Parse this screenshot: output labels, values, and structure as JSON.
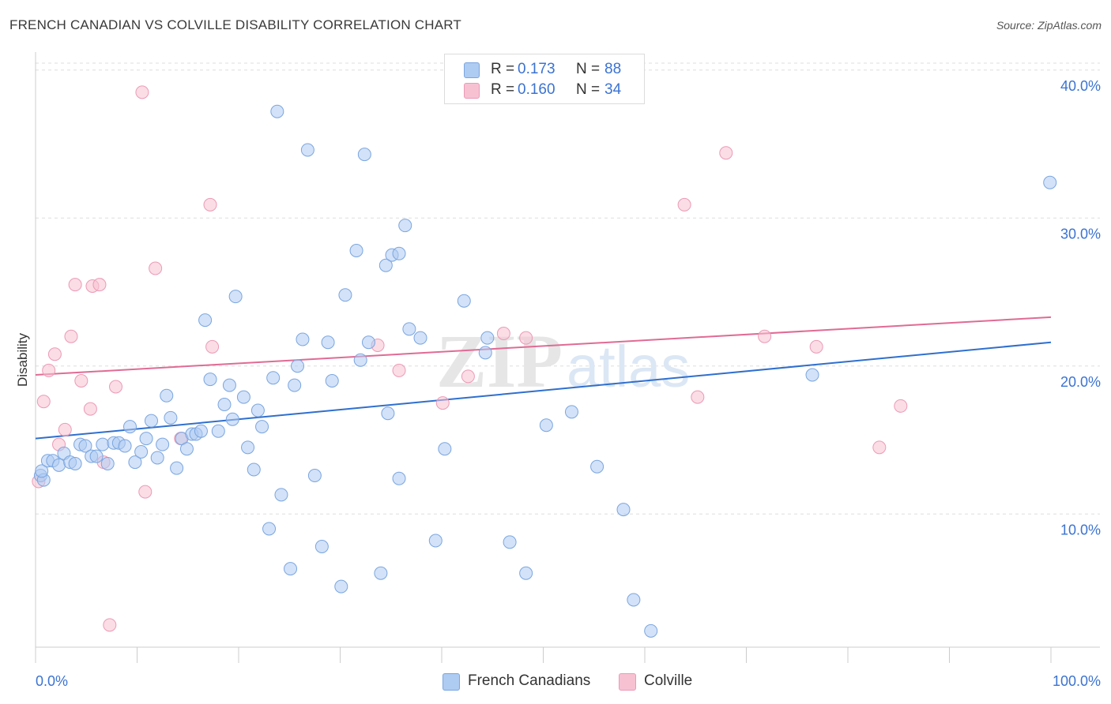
{
  "title": "FRENCH CANADIAN VS COLVILLE DISABILITY CORRELATION CHART",
  "source": "Source: ZipAtlas.com",
  "legend": {
    "rows": [
      {
        "r_label": "R =",
        "r_value": "0.173",
        "n_label": "N =",
        "n_value": "88"
      },
      {
        "r_label": "R =",
        "r_value": "0.160",
        "n_label": "N =",
        "n_value": "34"
      }
    ]
  },
  "bottom_legend": [
    "French Canadians",
    "Colville"
  ],
  "colors": {
    "blue_fill": "#aecbf2",
    "blue_stroke": "#7aa6e0",
    "blue_line": "#2f6fce",
    "pink_fill": "#f7c1d2",
    "pink_stroke": "#ec9ab5",
    "pink_line": "#e06b94",
    "axis_text": "#3b73d1",
    "grid": "#dddddd"
  },
  "chart_data": {
    "type": "scatter",
    "title": "FRENCH CANADIAN VS COLVILLE DISABILITY CORRELATION CHART",
    "xlabel": "",
    "ylabel": "Disability",
    "xlim": [
      0,
      100
    ],
    "ylim": [
      1,
      41
    ],
    "x_tick_labels": [
      "0.0%",
      "100.0%"
    ],
    "y_ticks": [
      10,
      20,
      30,
      40
    ],
    "y_tick_labels": [
      "10.0%",
      "20.0%",
      "30.0%",
      "40.0%"
    ],
    "grid": true,
    "legend_position": "top-center",
    "watermark": "ZIPatlas",
    "series": [
      {
        "name": "French Canadians",
        "r": 0.173,
        "n": 88,
        "trend": {
          "x": [
            0,
            100
          ],
          "y": [
            15.1,
            21.6
          ]
        },
        "points": [
          [
            0.5,
            12.6
          ],
          [
            0.8,
            12.3
          ],
          [
            0.6,
            12.9
          ],
          [
            1.2,
            13.6
          ],
          [
            1.7,
            13.6
          ],
          [
            2.3,
            13.3
          ],
          [
            2.8,
            14.1
          ],
          [
            3.4,
            13.5
          ],
          [
            3.9,
            13.4
          ],
          [
            4.4,
            14.7
          ],
          [
            4.9,
            14.6
          ],
          [
            5.5,
            13.9
          ],
          [
            6.0,
            13.9
          ],
          [
            6.6,
            14.7
          ],
          [
            7.1,
            13.4
          ],
          [
            7.7,
            14.8
          ],
          [
            8.2,
            14.8
          ],
          [
            8.8,
            14.6
          ],
          [
            9.3,
            15.9
          ],
          [
            9.8,
            13.5
          ],
          [
            10.4,
            14.2
          ],
          [
            10.9,
            15.1
          ],
          [
            11.4,
            16.3
          ],
          [
            12.0,
            13.8
          ],
          [
            12.5,
            14.7
          ],
          [
            12.9,
            18.0
          ],
          [
            13.3,
            16.5
          ],
          [
            13.9,
            13.1
          ],
          [
            14.4,
            15.1
          ],
          [
            14.9,
            14.4
          ],
          [
            15.4,
            15.4
          ],
          [
            15.8,
            15.4
          ],
          [
            16.3,
            15.6
          ],
          [
            16.7,
            23.1
          ],
          [
            17.2,
            19.1
          ],
          [
            18.0,
            15.6
          ],
          [
            18.6,
            17.4
          ],
          [
            19.1,
            18.7
          ],
          [
            19.4,
            16.4
          ],
          [
            19.7,
            24.7
          ],
          [
            20.5,
            17.9
          ],
          [
            20.9,
            14.5
          ],
          [
            21.5,
            13.0
          ],
          [
            21.9,
            17.0
          ],
          [
            22.3,
            15.9
          ],
          [
            23.0,
            9.0
          ],
          [
            23.4,
            19.2
          ],
          [
            23.8,
            37.2
          ],
          [
            24.2,
            11.3
          ],
          [
            25.1,
            6.3
          ],
          [
            25.5,
            18.7
          ],
          [
            25.8,
            20.0
          ],
          [
            26.3,
            21.8
          ],
          [
            26.8,
            34.6
          ],
          [
            27.5,
            12.6
          ],
          [
            28.2,
            7.8
          ],
          [
            28.8,
            21.6
          ],
          [
            29.2,
            19.0
          ],
          [
            30.1,
            5.1
          ],
          [
            30.5,
            24.8
          ],
          [
            31.6,
            27.8
          ],
          [
            32.0,
            20.4
          ],
          [
            32.4,
            34.3
          ],
          [
            32.8,
            21.6
          ],
          [
            34.0,
            6.0
          ],
          [
            34.5,
            26.8
          ],
          [
            35.1,
            27.5
          ],
          [
            35.8,
            27.6
          ],
          [
            34.7,
            16.8
          ],
          [
            35.8,
            12.4
          ],
          [
            36.4,
            29.5
          ],
          [
            36.8,
            22.5
          ],
          [
            37.9,
            21.9
          ],
          [
            39.4,
            8.2
          ],
          [
            40.3,
            14.4
          ],
          [
            42.2,
            24.4
          ],
          [
            44.5,
            21.9
          ],
          [
            44.3,
            20.9
          ],
          [
            46.7,
            8.1
          ],
          [
            48.3,
            6.0
          ],
          [
            50.3,
            16.0
          ],
          [
            52.8,
            16.9
          ],
          [
            55.3,
            13.2
          ],
          [
            57.9,
            10.3
          ],
          [
            58.9,
            4.2
          ],
          [
            60.6,
            2.1
          ],
          [
            76.5,
            19.4
          ],
          [
            99.9,
            32.4
          ]
        ]
      },
      {
        "name": "Colville",
        "r": 0.16,
        "n": 34,
        "trend": {
          "x": [
            0,
            100
          ],
          "y": [
            19.4,
            23.3
          ]
        },
        "points": [
          [
            0.3,
            12.2
          ],
          [
            0.8,
            17.6
          ],
          [
            1.3,
            19.7
          ],
          [
            1.9,
            20.8
          ],
          [
            2.3,
            14.7
          ],
          [
            2.9,
            15.7
          ],
          [
            3.5,
            22.0
          ],
          [
            3.9,
            25.5
          ],
          [
            4.5,
            19.0
          ],
          [
            5.4,
            17.1
          ],
          [
            5.6,
            25.4
          ],
          [
            6.3,
            25.5
          ],
          [
            6.7,
            13.5
          ],
          [
            7.3,
            2.5
          ],
          [
            7.9,
            18.6
          ],
          [
            10.5,
            38.5
          ],
          [
            10.8,
            11.5
          ],
          [
            11.8,
            26.6
          ],
          [
            14.3,
            15.1
          ],
          [
            17.2,
            30.9
          ],
          [
            17.4,
            21.3
          ],
          [
            33.7,
            21.4
          ],
          [
            35.8,
            19.7
          ],
          [
            40.1,
            17.5
          ],
          [
            42.6,
            19.3
          ],
          [
            46.1,
            22.2
          ],
          [
            48.3,
            21.9
          ],
          [
            63.9,
            30.9
          ],
          [
            65.2,
            17.9
          ],
          [
            68.0,
            34.4
          ],
          [
            71.8,
            22.0
          ],
          [
            76.9,
            21.3
          ],
          [
            83.1,
            14.5
          ],
          [
            85.2,
            17.3
          ]
        ]
      }
    ]
  }
}
